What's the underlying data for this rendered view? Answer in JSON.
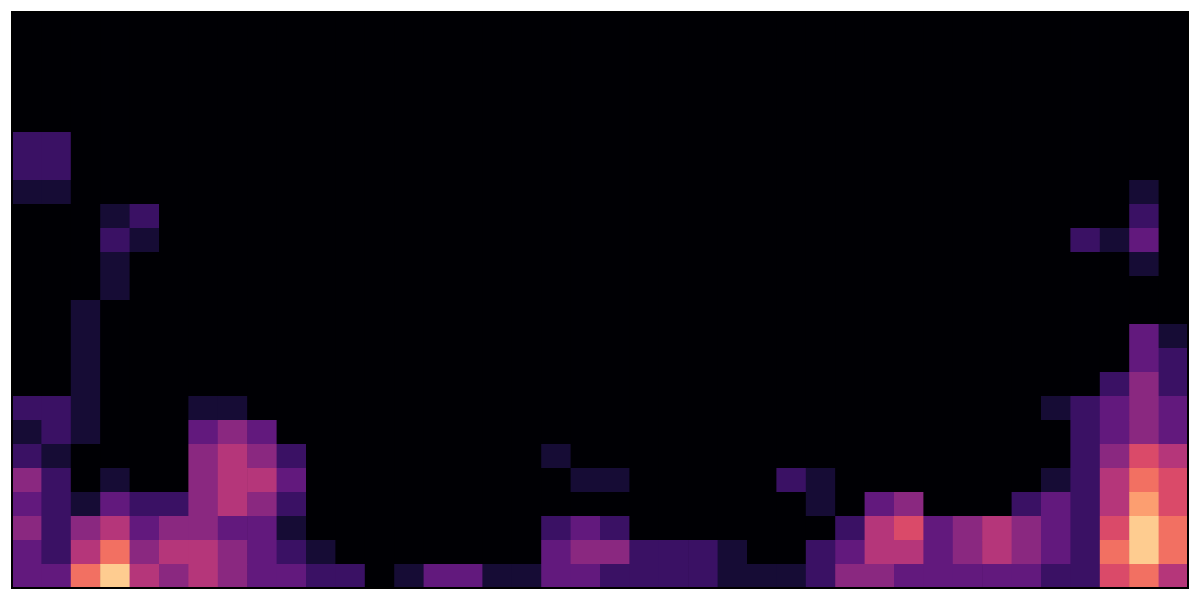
{
  "chart_data": {
    "type": "heatmap",
    "tick_labels": false,
    "grid": false,
    "zlim": [
      0,
      10
    ],
    "cells": [
      [
        0,
        0,
        0,
        0,
        0,
        0,
        0,
        0,
        0,
        0,
        0,
        0,
        0,
        0,
        0,
        0,
        0,
        0,
        0,
        0,
        0,
        0,
        0,
        0,
        0,
        0,
        0,
        0,
        0,
        0,
        0,
        0,
        0,
        0,
        0,
        0,
        0,
        0,
        0,
        0
      ],
      [
        0,
        0,
        0,
        0,
        0,
        0,
        0,
        0,
        0,
        0,
        0,
        0,
        0,
        0,
        0,
        0,
        0,
        0,
        0,
        0,
        0,
        0,
        0,
        0,
        0,
        0,
        0,
        0,
        0,
        0,
        0,
        0,
        0,
        0,
        0,
        0,
        0,
        0,
        0,
        0
      ],
      [
        0,
        0,
        0,
        0,
        0,
        0,
        0,
        0,
        0,
        0,
        0,
        0,
        0,
        0,
        0,
        0,
        0,
        0,
        0,
        0,
        0,
        0,
        0,
        0,
        0,
        0,
        0,
        0,
        0,
        0,
        0,
        0,
        0,
        0,
        0,
        0,
        0,
        0,
        0,
        0
      ],
      [
        0,
        0,
        0,
        0,
        0,
        0,
        0,
        0,
        0,
        0,
        0,
        0,
        0,
        0,
        0,
        0,
        0,
        0,
        0,
        0,
        0,
        0,
        0,
        0,
        0,
        0,
        0,
        0,
        0,
        0,
        0,
        0,
        0,
        0,
        0,
        0,
        0,
        0,
        0,
        0
      ],
      [
        0,
        0,
        0,
        0,
        0,
        0,
        0,
        0,
        0,
        0,
        0,
        0,
        0,
        0,
        0,
        0,
        0,
        0,
        0,
        0,
        0,
        0,
        0,
        0,
        0,
        0,
        0,
        0,
        0,
        0,
        0,
        0,
        0,
        0,
        0,
        0,
        0,
        0,
        0,
        0
      ],
      [
        2,
        2,
        0,
        0,
        0,
        0,
        0,
        0,
        0,
        0,
        0,
        0,
        0,
        0,
        0,
        0,
        0,
        0,
        0,
        0,
        0,
        0,
        0,
        0,
        0,
        0,
        0,
        0,
        0,
        0,
        0,
        0,
        0,
        0,
        0,
        0,
        0,
        0,
        0,
        0
      ],
      [
        2,
        2,
        0,
        0,
        0,
        0,
        0,
        0,
        0,
        0,
        0,
        0,
        0,
        0,
        0,
        0,
        0,
        0,
        0,
        0,
        0,
        0,
        0,
        0,
        0,
        0,
        0,
        0,
        0,
        0,
        0,
        0,
        0,
        0,
        0,
        0,
        0,
        0,
        0,
        0
      ],
      [
        1,
        1,
        0,
        0,
        0,
        0,
        0,
        0,
        0,
        0,
        0,
        0,
        0,
        0,
        0,
        0,
        0,
        0,
        0,
        0,
        0,
        0,
        0,
        0,
        0,
        0,
        0,
        0,
        0,
        0,
        0,
        0,
        0,
        0,
        0,
        0,
        0,
        0,
        1,
        0
      ],
      [
        0,
        0,
        0,
        1,
        2,
        0,
        0,
        0,
        0,
        0,
        0,
        0,
        0,
        0,
        0,
        0,
        0,
        0,
        0,
        0,
        0,
        0,
        0,
        0,
        0,
        0,
        0,
        0,
        0,
        0,
        0,
        0,
        0,
        0,
        0,
        0,
        0,
        0,
        2,
        0
      ],
      [
        0,
        0,
        0,
        2,
        1,
        0,
        0,
        0,
        0,
        0,
        0,
        0,
        0,
        0,
        0,
        0,
        0,
        0,
        0,
        0,
        0,
        0,
        0,
        0,
        0,
        0,
        0,
        0,
        0,
        0,
        0,
        0,
        0,
        0,
        0,
        0,
        2,
        1,
        3,
        0
      ],
      [
        0,
        0,
        0,
        1,
        0,
        0,
        0,
        0,
        0,
        0,
        0,
        0,
        0,
        0,
        0,
        0,
        0,
        0,
        0,
        0,
        0,
        0,
        0,
        0,
        0,
        0,
        0,
        0,
        0,
        0,
        0,
        0,
        0,
        0,
        0,
        0,
        0,
        0,
        1,
        0
      ],
      [
        0,
        0,
        0,
        1,
        0,
        0,
        0,
        0,
        0,
        0,
        0,
        0,
        0,
        0,
        0,
        0,
        0,
        0,
        0,
        0,
        0,
        0,
        0,
        0,
        0,
        0,
        0,
        0,
        0,
        0,
        0,
        0,
        0,
        0,
        0,
        0,
        0,
        0,
        0,
        0
      ],
      [
        0,
        0,
        1,
        0,
        0,
        0,
        0,
        0,
        0,
        0,
        0,
        0,
        0,
        0,
        0,
        0,
        0,
        0,
        0,
        0,
        0,
        0,
        0,
        0,
        0,
        0,
        0,
        0,
        0,
        0,
        0,
        0,
        0,
        0,
        0,
        0,
        0,
        0,
        0,
        0
      ],
      [
        0,
        0,
        1,
        0,
        0,
        0,
        0,
        0,
        0,
        0,
        0,
        0,
        0,
        0,
        0,
        0,
        0,
        0,
        0,
        0,
        0,
        0,
        0,
        0,
        0,
        0,
        0,
        0,
        0,
        0,
        0,
        0,
        0,
        0,
        0,
        0,
        0,
        0,
        3,
        1
      ],
      [
        0,
        0,
        1,
        0,
        0,
        0,
        0,
        0,
        0,
        0,
        0,
        0,
        0,
        0,
        0,
        0,
        0,
        0,
        0,
        0,
        0,
        0,
        0,
        0,
        0,
        0,
        0,
        0,
        0,
        0,
        0,
        0,
        0,
        0,
        0,
        0,
        0,
        0,
        3,
        2
      ],
      [
        0,
        0,
        1,
        0,
        0,
        0,
        0,
        0,
        0,
        0,
        0,
        0,
        0,
        0,
        0,
        0,
        0,
        0,
        0,
        0,
        0,
        0,
        0,
        0,
        0,
        0,
        0,
        0,
        0,
        0,
        0,
        0,
        0,
        0,
        0,
        0,
        0,
        2,
        4,
        2
      ],
      [
        2,
        2,
        1,
        0,
        0,
        0,
        1,
        1,
        0,
        0,
        0,
        0,
        0,
        0,
        0,
        0,
        0,
        0,
        0,
        0,
        0,
        0,
        0,
        0,
        0,
        0,
        0,
        0,
        0,
        0,
        0,
        0,
        0,
        0,
        0,
        1,
        2,
        3,
        4,
        3
      ],
      [
        1,
        2,
        1,
        0,
        0,
        0,
        3,
        4,
        3,
        0,
        0,
        0,
        0,
        0,
        0,
        0,
        0,
        0,
        0,
        0,
        0,
        0,
        0,
        0,
        0,
        0,
        0,
        0,
        0,
        0,
        0,
        0,
        0,
        0,
        0,
        0,
        2,
        3,
        4,
        3
      ],
      [
        2,
        1,
        0,
        0,
        0,
        0,
        4,
        5,
        4,
        2,
        0,
        0,
        0,
        0,
        0,
        0,
        0,
        0,
        1,
        0,
        0,
        0,
        0,
        0,
        0,
        0,
        0,
        0,
        0,
        0,
        0,
        0,
        0,
        0,
        0,
        0,
        2,
        4,
        6,
        5
      ],
      [
        4,
        2,
        0,
        1,
        0,
        0,
        4,
        5,
        5,
        3,
        0,
        0,
        0,
        0,
        0,
        0,
        0,
        0,
        0,
        1,
        1,
        0,
        0,
        0,
        0,
        0,
        2,
        1,
        0,
        0,
        0,
        0,
        0,
        0,
        0,
        1,
        2,
        5,
        7,
        6
      ],
      [
        3,
        2,
        1,
        3,
        2,
        2,
        4,
        5,
        4,
        2,
        0,
        0,
        0,
        0,
        0,
        0,
        0,
        0,
        0,
        0,
        0,
        0,
        0,
        0,
        0,
        0,
        0,
        1,
        0,
        3,
        4,
        0,
        0,
        0,
        2,
        3,
        2,
        5,
        8,
        6
      ],
      [
        4,
        2,
        4,
        5,
        3,
        4,
        4,
        3,
        3,
        1,
        0,
        0,
        0,
        0,
        0,
        0,
        0,
        0,
        2,
        3,
        2,
        0,
        0,
        0,
        0,
        0,
        0,
        0,
        2,
        5,
        6,
        3,
        4,
        5,
        4,
        3,
        2,
        6,
        9,
        7
      ],
      [
        3,
        2,
        5,
        7,
        4,
        5,
        5,
        4,
        3,
        2,
        1,
        0,
        0,
        0,
        0,
        0,
        0,
        0,
        3,
        4,
        4,
        2,
        2,
        2,
        1,
        0,
        0,
        2,
        3,
        5,
        5,
        3,
        4,
        5,
        4,
        3,
        2,
        7,
        9,
        7
      ],
      [
        3,
        3,
        7,
        9,
        5,
        4,
        5,
        4,
        3,
        3,
        2,
        2,
        0,
        1,
        3,
        3,
        1,
        1,
        3,
        3,
        2,
        2,
        2,
        2,
        1,
        1,
        1,
        2,
        4,
        4,
        3,
        3,
        3,
        3,
        3,
        2,
        2,
        6,
        7,
        5
      ]
    ]
  }
}
